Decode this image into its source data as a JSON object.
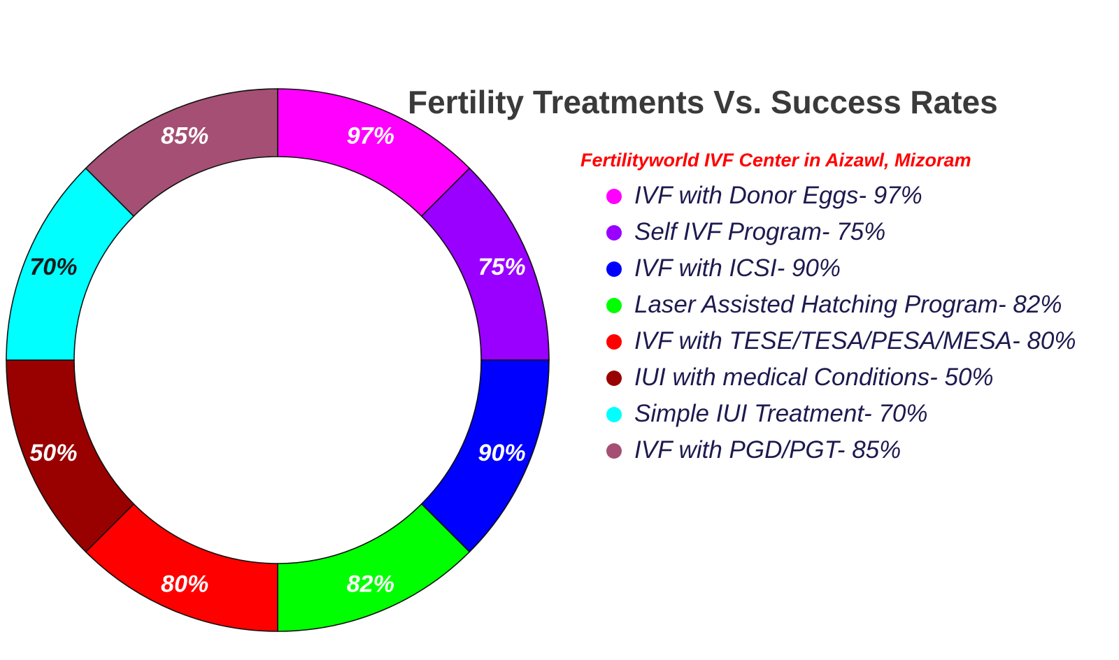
{
  "chart_data": {
    "type": "pie",
    "title": "Fertility Treatments Vs. Success Rates",
    "subtitle": "Fertilityworld IVF Center in Aizawl, Mizoram",
    "subtitle_color": "#ff0000",
    "title_color": "#3a3a3a",
    "legend_text_color": "#1c1a4f",
    "legend_position": "right",
    "donut": true,
    "slice_values": "equal shares",
    "slices": [
      {
        "label": "97%",
        "value": 97,
        "legend": "IVF with Donor Eggs- 97%",
        "color": "#ff00ff",
        "label_color": "#ffffff"
      },
      {
        "label": "75%",
        "value": 75,
        "legend": "Self IVF Program- 75%",
        "color": "#9900ff",
        "label_color": "#ffffff"
      },
      {
        "label": "90%",
        "value": 90,
        "legend": "IVF with ICSI- 90%",
        "color": "#0000ff",
        "label_color": "#ffffff"
      },
      {
        "label": "82%",
        "value": 82,
        "legend": "Laser Assisted Hatching Program- 82%",
        "color": "#00ff00",
        "label_color": "#ffffff"
      },
      {
        "label": "80%",
        "value": 80,
        "legend": "IVF with TESE/TESA/PESA/MESA- 80%",
        "color": "#ff0000",
        "label_color": "#ffffff"
      },
      {
        "label": "50%",
        "value": 50,
        "legend": "IUI with medical Conditions- 50%",
        "color": "#990000",
        "label_color": "#ffffff"
      },
      {
        "label": "70%",
        "value": 70,
        "legend": "Simple IUI Treatment- 70%",
        "color": "#00ffff",
        "label_color": "#1a1a1a"
      },
      {
        "label": "85%",
        "value": 85,
        "legend": "IVF with PGD/PGT- 85%",
        "color": "#a44f73",
        "label_color": "#ffffff"
      }
    ]
  }
}
